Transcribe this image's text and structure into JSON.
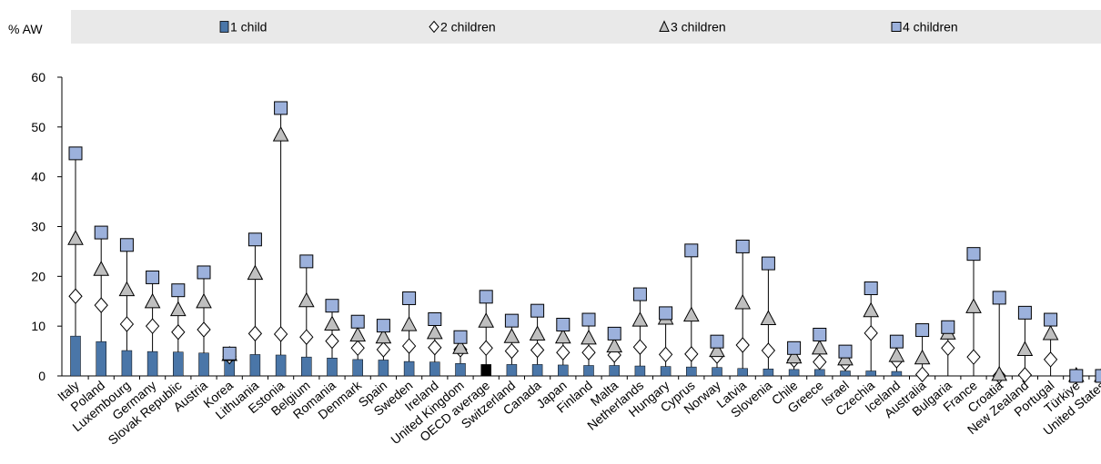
{
  "chart_data": {
    "type": "bar",
    "unit_label": "% AW",
    "ylim": [
      0,
      60
    ],
    "yticks": [
      0,
      10,
      20,
      30,
      40,
      50,
      60
    ],
    "grid": false,
    "legend_position": "top",
    "categories": [
      "Italy",
      "Poland",
      "Luxembourg",
      "Germany",
      "Slovak Republic",
      "Austria",
      "Korea",
      "Lithuania",
      "Estonia",
      "Belgium",
      "Romania",
      "Denmark",
      "Spain",
      "Sweden",
      "Ireland",
      "United Kingdom",
      "OECD average",
      "Switzerland",
      "Canada",
      "Japan",
      "Finland",
      "Malta",
      "Netherlands",
      "Hungary",
      "Cyprus",
      "Norway",
      "Latvia",
      "Slovenia",
      "Chile",
      "Greece",
      "Israel",
      "Czechia",
      "Iceland",
      "Australia",
      "Bulgaria",
      "France",
      "Croatia",
      "New Zealand",
      "Portugal",
      "Türkiye",
      "United States"
    ],
    "highlight_category": "OECD average",
    "series": [
      {
        "name": "1 child",
        "marker": "bar",
        "values": [
          8,
          6.9,
          5.1,
          4.9,
          4.8,
          4.6,
          4.3,
          4.3,
          4.2,
          3.8,
          3.6,
          3.3,
          3.2,
          2.9,
          2.8,
          2.5,
          2.3,
          2.3,
          2.3,
          2.2,
          2.1,
          2.1,
          2.0,
          1.9,
          1.8,
          1.7,
          1.5,
          1.4,
          1.3,
          1.3,
          1.0,
          1.0,
          0.9,
          0,
          0,
          0,
          0,
          0,
          0,
          0,
          0
        ]
      },
      {
        "name": "2 children",
        "marker": "diamond",
        "values": [
          16,
          14.2,
          10.4,
          10,
          8.8,
          9.3,
          3.9,
          8.5,
          8.4,
          7.8,
          7,
          5.6,
          5.3,
          6,
          5.7,
          5.3,
          5.6,
          5,
          5.2,
          4.7,
          4.7,
          4.2,
          5.8,
          4.3,
          4.4,
          4,
          6.2,
          5.1,
          3.2,
          2.8,
          2.6,
          8.6,
          3.1,
          0.3,
          5.6,
          3.8,
          0,
          0.2,
          3.3,
          0,
          0
        ]
      },
      {
        "name": "3 children",
        "marker": "triangle",
        "values": [
          27.5,
          21.3,
          17.2,
          14.8,
          13.2,
          14.8,
          4.2,
          20.5,
          48.3,
          15,
          10.3,
          8.1,
          7.7,
          10.2,
          8.6,
          5.6,
          10.9,
          7.8,
          8.3,
          7.7,
          7.5,
          5.9,
          11.1,
          11.5,
          12.1,
          5,
          14.6,
          11.4,
          3.7,
          5.5,
          3.3,
          13,
          4,
          3.5,
          8.5,
          13.8,
          0.2,
          5.2,
          8.4,
          0,
          0
        ]
      },
      {
        "name": "4 children",
        "marker": "square",
        "values": [
          44.7,
          28.8,
          26.3,
          19.8,
          17.2,
          20.8,
          4.5,
          27.4,
          53.8,
          23,
          14.1,
          10.9,
          10.1,
          15.6,
          11.4,
          7.8,
          15.9,
          11.1,
          13.1,
          10.3,
          11.3,
          8.5,
          16.4,
          12.6,
          25.2,
          6.9,
          26,
          22.6,
          5.6,
          8.3,
          4.9,
          17.6,
          6.9,
          9.2,
          9.8,
          24.5,
          15.7,
          12.7,
          11.3,
          0,
          0
        ]
      }
    ]
  }
}
